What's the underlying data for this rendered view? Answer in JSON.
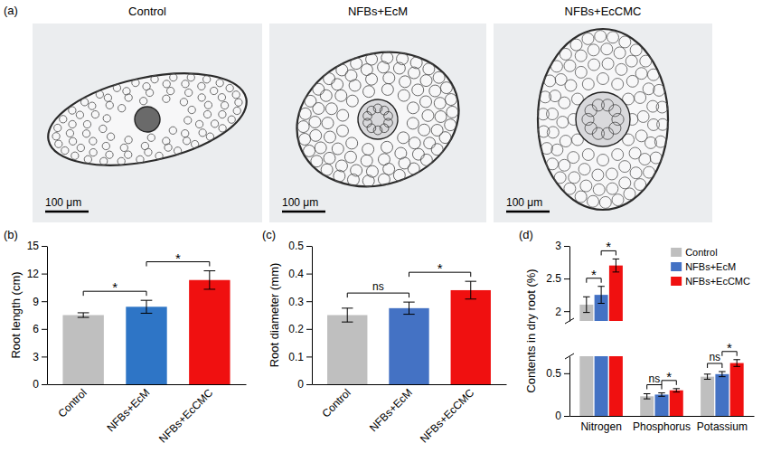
{
  "images": {
    "letter": "(a)",
    "panels": [
      {
        "title": "Control",
        "scale_bar": "100 μm"
      },
      {
        "title": "NFBs+EcM",
        "scale_bar": "100 μm"
      },
      {
        "title": "NFBs+EcCMC",
        "scale_bar": "100 μm"
      }
    ]
  },
  "chart_data": [
    {
      "type": "bar",
      "panel": "(b)",
      "y_label": "Root length (cm)",
      "categories": [
        "Control",
        "NFBs+EcM",
        "NFBs+EcCMC"
      ],
      "values": [
        7.5,
        8.4,
        11.3
      ],
      "errors": [
        0.25,
        0.7,
        1.0
      ],
      "colors": [
        "#bfbfbf",
        "#2e75c6",
        "#f01010"
      ],
      "ylim": [
        0,
        15
      ],
      "yticks": [
        0,
        3,
        6,
        9,
        12,
        15
      ],
      "comparisons": [
        {
          "pair": [
            "Control",
            "NFBs+EcM"
          ],
          "label": "*"
        },
        {
          "pair": [
            "NFBs+EcM",
            "NFBs+EcCMC"
          ],
          "label": "*"
        }
      ]
    },
    {
      "type": "bar",
      "panel": "(c)",
      "y_label": "Root diameter (mm)",
      "categories": [
        "Control",
        "NFBs+EcM",
        "NFBs+EcCMC"
      ],
      "values": [
        0.25,
        0.275,
        0.34
      ],
      "errors": [
        0.025,
        0.022,
        0.032
      ],
      "colors": [
        "#bfbfbf",
        "#4472c4",
        "#f01010"
      ],
      "ylim": [
        0,
        0.5
      ],
      "yticks": [
        0,
        0.1,
        0.2,
        0.3,
        0.4,
        0.5
      ],
      "comparisons": [
        {
          "pair": [
            "Control",
            "NFBs+EcM"
          ],
          "label": "ns"
        },
        {
          "pair": [
            "NFBs+EcM",
            "NFBs+EcCMC"
          ],
          "label": "*"
        }
      ]
    },
    {
      "type": "bar",
      "panel": "(d)",
      "y_label": "Contents in dry root (%)",
      "categories": [
        "Nitrogen",
        "Phosphorus",
        "Potassium"
      ],
      "series": [
        {
          "name": "Control",
          "color": "#bfbfbf",
          "values": [
            2.1,
            0.23,
            0.46
          ],
          "errors": [
            0.12,
            0.03,
            0.03
          ]
        },
        {
          "name": "NFBs+EcM",
          "color": "#4472c4",
          "values": [
            2.25,
            0.25,
            0.49
          ],
          "errors": [
            0.13,
            0.02,
            0.03
          ]
        },
        {
          "name": "NFBs+EcCMC",
          "color": "#f01010",
          "values": [
            2.7,
            0.3,
            0.62
          ],
          "errors": [
            0.1,
            0.02,
            0.04
          ]
        }
      ],
      "ylim": [
        0,
        3
      ],
      "y_break": [
        0.7,
        1.85
      ],
      "yticks": [
        0,
        0.5,
        2,
        2.5,
        3
      ],
      "legend": "top-right",
      "comparisons": [
        {
          "category": "Nitrogen",
          "pair": [
            "Control",
            "NFBs+EcM"
          ],
          "label": "*"
        },
        {
          "category": "Nitrogen",
          "pair": [
            "NFBs+EcM",
            "NFBs+EcCMC"
          ],
          "label": "*"
        },
        {
          "category": "Phosphorus",
          "pair": [
            "Control",
            "NFBs+EcM"
          ],
          "label": "ns"
        },
        {
          "category": "Phosphorus",
          "pair": [
            "NFBs+EcM",
            "NFBs+EcCMC"
          ],
          "label": "*"
        },
        {
          "category": "Potassium",
          "pair": [
            "Control",
            "NFBs+EcM"
          ],
          "label": "ns"
        },
        {
          "category": "Potassium",
          "pair": [
            "NFBs+EcM",
            "NFBs+EcCMC"
          ],
          "label": "*"
        }
      ]
    }
  ]
}
